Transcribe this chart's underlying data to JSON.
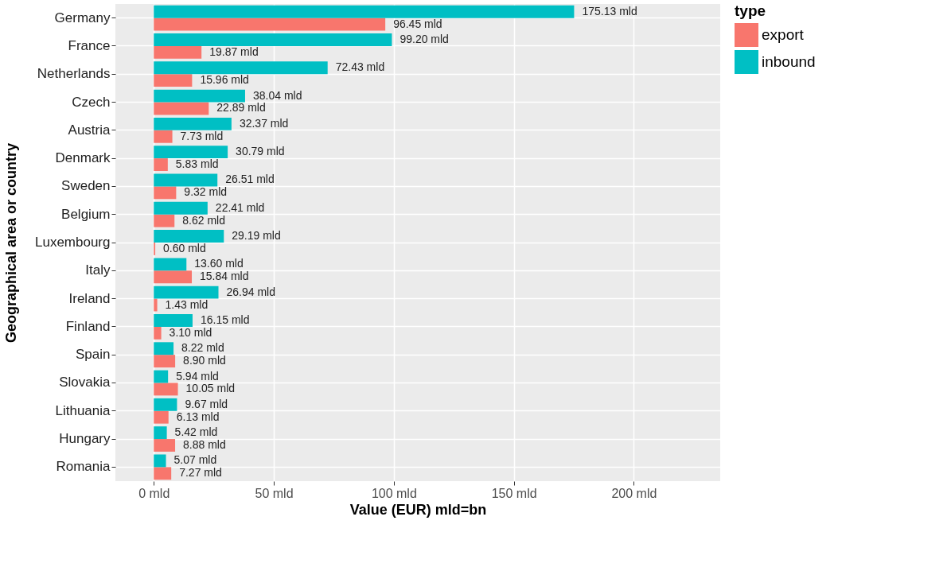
{
  "chart_data": {
    "type": "bar",
    "orientation": "horizontal",
    "xlabel": "Value (EUR) mld=bn",
    "ylabel": "Geographical area or country",
    "legend_title": "type",
    "legend": "right",
    "grid": true,
    "categories": [
      "Germany",
      "France",
      "Netherlands",
      "Czech",
      "Austria",
      "Denmark",
      "Sweden",
      "Belgium",
      "Luxembourg",
      "Italy",
      "Ireland",
      "Finland",
      "Spain",
      "Slovakia",
      "Lithuania",
      "Hungary",
      "Romania"
    ],
    "xlim": [
      -16,
      236
    ],
    "xticks": [
      {
        "value": 0,
        "label": "0 mld"
      },
      {
        "value": 50,
        "label": "50 mld"
      },
      {
        "value": 100,
        "label": "100 mld"
      },
      {
        "value": 150,
        "label": "150 mld"
      },
      {
        "value": 200,
        "label": "200 mld"
      }
    ],
    "series": [
      {
        "name": "export",
        "color": "#f8766d",
        "values": [
          96.45,
          19.87,
          15.96,
          22.89,
          7.73,
          5.83,
          9.32,
          8.62,
          0.6,
          15.84,
          1.43,
          3.1,
          8.9,
          10.05,
          6.13,
          8.88,
          7.27
        ],
        "value_labels": [
          "96.45 mld",
          "19.87 mld",
          "15.96 mld",
          "22.89 mld",
          "7.73 mld",
          "5.83 mld",
          "9.32 mld",
          "8.62 mld",
          "0.60 mld",
          "15.84 mld",
          "1.43 mld",
          "3.10 mld",
          "8.90 mld",
          "10.05 mld",
          "6.13 mld",
          "8.88 mld",
          "7.27 mld"
        ]
      },
      {
        "name": "inbound",
        "color": "#00bfc4",
        "values": [
          175.13,
          99.2,
          72.43,
          38.04,
          32.37,
          30.79,
          26.51,
          22.41,
          29.19,
          13.6,
          26.94,
          16.15,
          8.22,
          5.94,
          9.67,
          5.42,
          5.07
        ],
        "value_labels": [
          "175.13 mld",
          "99.20 mld",
          "72.43 mld",
          "38.04 mld",
          "32.37 mld",
          "30.79 mld",
          "26.51 mld",
          "22.41 mld",
          "29.19 mld",
          "13.60 mld",
          "26.94 mld",
          "16.15 mld",
          "8.22 mld",
          "5.94 mld",
          "9.67 mld",
          "5.42 mld",
          "5.07 mld"
        ]
      }
    ]
  }
}
